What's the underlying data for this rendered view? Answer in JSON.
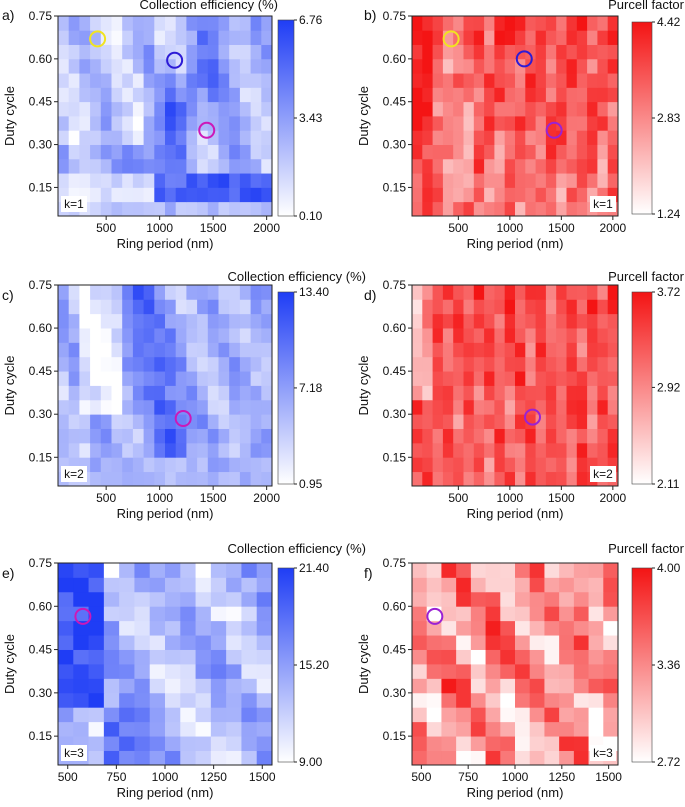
{
  "figure": {
    "description_units": {
      "x": "nm",
      "y": "duty cycle"
    }
  },
  "colors": {
    "blue": "#1f3df5",
    "red": "#f41414",
    "yellow": "#f1e320",
    "navy": "#2d1bd6",
    "magenta": "#cc18b8",
    "purple": "#9a22d4"
  },
  "chart_data": [
    {
      "type": "heatmap",
      "panel": "a)",
      "cmap": "blue",
      "title": "Collection efficiency (%)",
      "xlabel": "Ring period (nm)",
      "ylabel": "Duty cycle",
      "x_ticks": [
        500,
        1000,
        1500,
        2000
      ],
      "x_tick_labels": [
        "500",
        "1000",
        "1500",
        "2000"
      ],
      "xlim": [
        50,
        2050
      ],
      "y_ticks": [
        0.15,
        0.3,
        0.45,
        0.6,
        0.75
      ],
      "y_tick_labels": [
        "0.15",
        "0.30",
        "0.45",
        "0.60",
        "0.75"
      ],
      "ylim": [
        0.05,
        0.75
      ],
      "colorbar_ticks": [
        6.76,
        3.43,
        0.1
      ],
      "colorbar_labels": [
        "6.76",
        "3.43",
        "0.10"
      ],
      "vmin": 0.1,
      "vmax": 6.76,
      "k_label": "k=1",
      "seed": 11,
      "grid": [
        20,
        14
      ],
      "pattern": "ceA",
      "markers": [
        {
          "x": 420,
          "y": 0.67,
          "color": "yellow"
        },
        {
          "x": 1140,
          "y": 0.595,
          "color": "navy"
        },
        {
          "x": 1440,
          "y": 0.35,
          "color": "magenta"
        }
      ]
    },
    {
      "type": "heatmap",
      "panel": "b)",
      "cmap": "red",
      "title": "Purcell factor",
      "xlabel": "Ring period (nm)",
      "ylabel": "Duty cycle",
      "x_ticks": [
        500,
        1000,
        1500,
        2000
      ],
      "x_tick_labels": [
        "500",
        "1000",
        "1500",
        "2000"
      ],
      "xlim": [
        50,
        2050
      ],
      "y_ticks": [
        0.15,
        0.3,
        0.45,
        0.6,
        0.75
      ],
      "y_tick_labels": [
        "0.15",
        "0.30",
        "0.45",
        "0.60",
        "0.75"
      ],
      "ylim": [
        0.05,
        0.75
      ],
      "colorbar_ticks": [
        4.42,
        2.83,
        1.24
      ],
      "colorbar_labels": [
        "4.42",
        "2.83",
        "1.24"
      ],
      "vmin": 1.24,
      "vmax": 4.42,
      "k_label": "k=1",
      "seed": 23,
      "grid": [
        20,
        14
      ],
      "pattern": "pfA",
      "markers": [
        {
          "x": 430,
          "y": 0.67,
          "color": "yellow"
        },
        {
          "x": 1140,
          "y": 0.6,
          "color": "navy"
        },
        {
          "x": 1430,
          "y": 0.35,
          "color": "purple"
        }
      ]
    },
    {
      "type": "heatmap",
      "panel": "c)",
      "cmap": "blue",
      "title": "Collection efficiency (%)",
      "xlabel": "Ring period (nm)",
      "ylabel": "Duty cycle",
      "x_ticks": [
        500,
        1000,
        1500,
        2000
      ],
      "x_tick_labels": [
        "500",
        "1000",
        "1500",
        "2000"
      ],
      "xlim": [
        50,
        2050
      ],
      "y_ticks": [
        0.15,
        0.3,
        0.45,
        0.6,
        0.75
      ],
      "y_tick_labels": [
        "0.15",
        "0.30",
        "0.45",
        "0.60",
        "0.75"
      ],
      "ylim": [
        0.05,
        0.75
      ],
      "colorbar_ticks": [
        13.4,
        7.18,
        0.95
      ],
      "colorbar_labels": [
        "13.40",
        "7.18",
        "0.95"
      ],
      "vmin": 0.95,
      "vmax": 13.4,
      "k_label": "k=2",
      "seed": 37,
      "grid": [
        20,
        14
      ],
      "pattern": "ceB",
      "markers": [
        {
          "x": 1220,
          "y": 0.285,
          "color": "magenta"
        }
      ]
    },
    {
      "type": "heatmap",
      "panel": "d)",
      "cmap": "red",
      "title": "Purcell factor",
      "xlabel": "Ring period (nm)",
      "ylabel": "Duty cycle",
      "x_ticks": [
        500,
        1000,
        1500,
        2000
      ],
      "x_tick_labels": [
        "500",
        "1000",
        "1500",
        "2000"
      ],
      "xlim": [
        50,
        2050
      ],
      "y_ticks": [
        0.15,
        0.3,
        0.45,
        0.6,
        0.75
      ],
      "y_tick_labels": [
        "0.15",
        "0.30",
        "0.45",
        "0.60",
        "0.75"
      ],
      "ylim": [
        0.05,
        0.75
      ],
      "colorbar_ticks": [
        3.72,
        2.92,
        2.11
      ],
      "colorbar_labels": [
        "3.72",
        "2.92",
        "2.11"
      ],
      "vmin": 2.11,
      "vmax": 3.72,
      "k_label": "k=2",
      "seed": 41,
      "grid": [
        20,
        14
      ],
      "pattern": "pfB",
      "markers": [
        {
          "x": 1220,
          "y": 0.29,
          "color": "purple"
        }
      ]
    },
    {
      "type": "heatmap",
      "panel": "e)",
      "cmap": "blue",
      "title": "Collection efficiency (%)",
      "xlabel": "Ring period (nm)",
      "ylabel": "Duty cycle",
      "x_ticks": [
        500,
        750,
        1000,
        1250,
        1500
      ],
      "x_tick_labels": [
        "500",
        "750",
        "1000",
        "1250",
        "1500"
      ],
      "xlim": [
        450,
        1550
      ],
      "y_ticks": [
        0.15,
        0.3,
        0.45,
        0.6,
        0.75
      ],
      "y_tick_labels": [
        "0.15",
        "0.30",
        "0.45",
        "0.60",
        "0.75"
      ],
      "ylim": [
        0.05,
        0.75
      ],
      "colorbar_ticks": [
        21.4,
        15.2,
        9.0
      ],
      "colorbar_labels": [
        "21.40",
        "15.20",
        "9.00"
      ],
      "vmin": 9.0,
      "vmax": 21.4,
      "k_label": "k=3",
      "seed": 53,
      "grid": [
        14,
        14
      ],
      "pattern": "ceC",
      "markers": [
        {
          "x": 578,
          "y": 0.565,
          "color": "magenta"
        }
      ]
    },
    {
      "type": "heatmap",
      "panel": "f)",
      "cmap": "red",
      "title": "Purcell factor",
      "xlabel": "Ring period (nm)",
      "ylabel": "Duty cycle",
      "x_ticks": [
        500,
        750,
        1000,
        1250,
        1500
      ],
      "x_tick_labels": [
        "500",
        "750",
        "1000",
        "1250",
        "1500"
      ],
      "xlim": [
        450,
        1550
      ],
      "y_ticks": [
        0.15,
        0.3,
        0.45,
        0.6,
        0.75
      ],
      "y_tick_labels": [
        "0.15",
        "0.30",
        "0.45",
        "0.60",
        "0.75"
      ],
      "ylim": [
        0.05,
        0.75
      ],
      "colorbar_ticks": [
        4.0,
        3.36,
        2.72
      ],
      "colorbar_labels": [
        "4.00",
        "3.36",
        "2.72"
      ],
      "vmin": 2.72,
      "vmax": 4.0,
      "k_label": "k=3",
      "seed": 67,
      "grid": [
        14,
        14
      ],
      "pattern": "pfC",
      "markers": [
        {
          "x": 572,
          "y": 0.565,
          "color": "purple"
        }
      ]
    }
  ]
}
